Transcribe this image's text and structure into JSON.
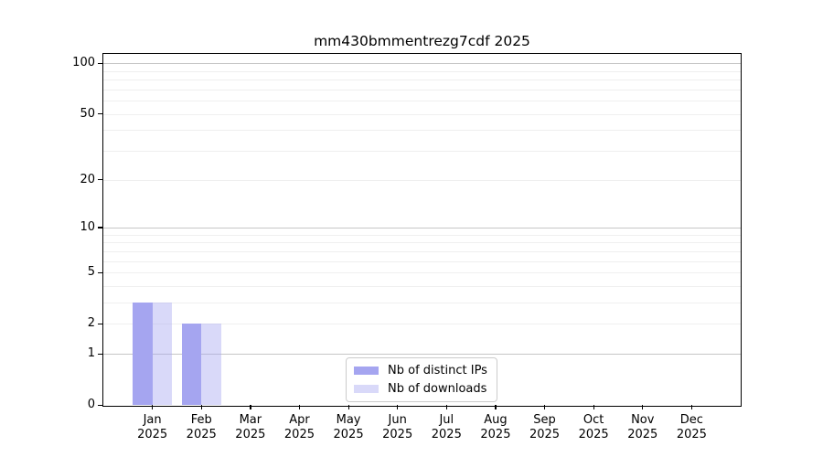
{
  "chart_data": {
    "type": "bar",
    "title": "mm430bmmentrezg7cdf 2025",
    "categories": [
      "Jan",
      "Feb",
      "Mar",
      "Apr",
      "May",
      "Jun",
      "Jul",
      "Aug",
      "Sep",
      "Oct",
      "Nov",
      "Dec"
    ],
    "category_year": "2025",
    "series": [
      {
        "name": "Nb of distinct IPs",
        "color": "#a5a5f0",
        "values": [
          3,
          2,
          0,
          0,
          0,
          0,
          0,
          0,
          0,
          0,
          0,
          0
        ]
      },
      {
        "name": "Nb of downloads",
        "color": "rgba(165,165,240,0.42)",
        "values": [
          3,
          2,
          0,
          0,
          0,
          0,
          0,
          0,
          0,
          0,
          0,
          0
        ]
      }
    ],
    "y_axis": {
      "scale": "log1p",
      "ticks": [
        0,
        1,
        2,
        5,
        10,
        20,
        50,
        100
      ],
      "max": 113,
      "major_gridlines": [
        1,
        10,
        100
      ],
      "minor_gridlines": [
        2,
        3,
        4,
        5,
        6,
        7,
        8,
        9,
        20,
        30,
        40,
        50,
        60,
        70,
        80,
        90
      ]
    },
    "x_axis": {
      "label_line2": "2025"
    },
    "legend": {
      "position": "lower center"
    },
    "grid": true,
    "background": "#ffffff"
  }
}
